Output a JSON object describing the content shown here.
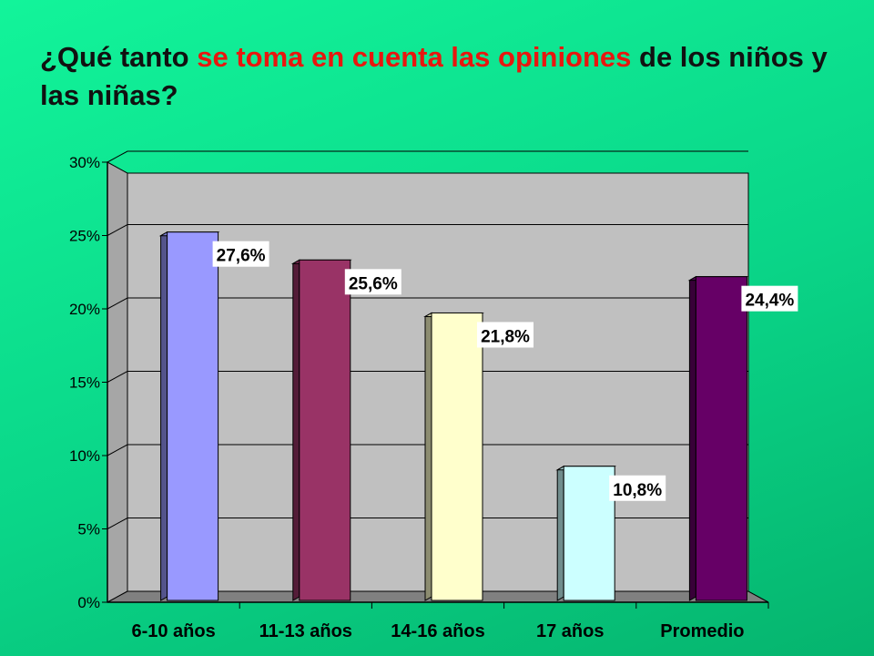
{
  "title": {
    "part1": "¿Qué tanto ",
    "highlight": "se toma en cuenta las opiniones",
    "part2": " de los niños y las niñas?",
    "highlight_color": "#e8170f"
  },
  "chart_data": {
    "type": "bar",
    "title": "¿Qué tanto se toma en cuenta las opiniones de los niños y las niñas?",
    "categories": [
      "6-10 años",
      "11-13 años",
      "14-16 años",
      "17 años",
      "Promedio"
    ],
    "values": [
      27.6,
      25.6,
      21.8,
      10.8,
      24.4
    ],
    "data_labels": [
      "27,6%",
      "25,6%",
      "21,8%",
      "10,8%",
      "24,4%"
    ],
    "colors": [
      "#9999ff",
      "#993366",
      "#ffffcc",
      "#ccffff",
      "#660066"
    ],
    "yticks": [
      "0%",
      "5%",
      "10%",
      "15%",
      "20%",
      "25%",
      "30%"
    ],
    "ylim": [
      0,
      30
    ],
    "xlabel": "",
    "ylabel": "",
    "grid": true,
    "legend": "none"
  }
}
